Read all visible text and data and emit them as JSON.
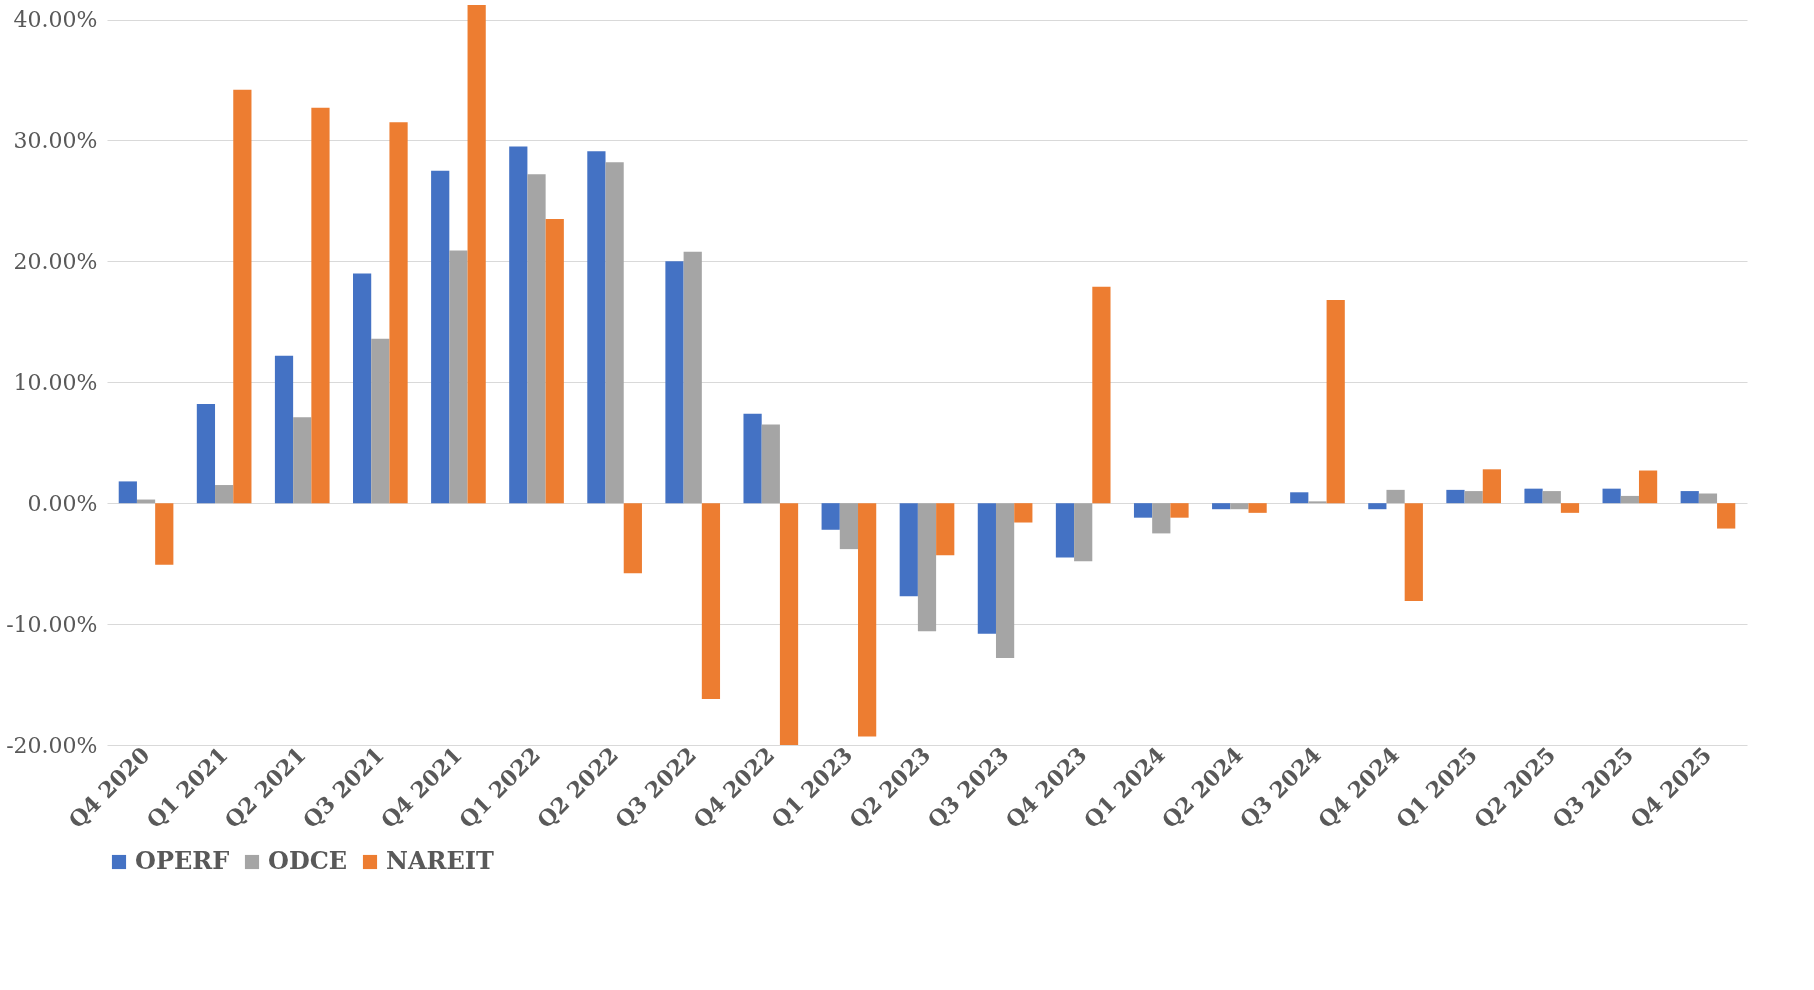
{
  "chart_data": {
    "type": "bar",
    "categories": [
      "Q4 2020",
      "Q1 2021",
      "Q2 2021",
      "Q3 2021",
      "Q4 2021",
      "Q1 2022",
      "Q2 2022",
      "Q3 2022",
      "Q4 2022",
      "Q1 2023",
      "Q2 2023",
      "Q3 2023",
      "Q4 2023",
      "Q1 2024",
      "Q2 2024",
      "Q3 2024",
      "Q4 2024",
      "Q1 2025",
      "Q2 2025",
      "Q3 2025",
      "Q4 2025"
    ],
    "series": [
      {
        "name": "OPERF",
        "color": "#4472c4",
        "values": [
          1.8,
          8.2,
          12.2,
          19.0,
          27.5,
          29.5,
          29.1,
          20.0,
          7.4,
          -2.2,
          -7.7,
          -10.8,
          -4.5,
          -1.2,
          -0.5,
          0.9,
          -0.5,
          1.1,
          1.2,
          1.2,
          1.0
        ]
      },
      {
        "name": "ODCE",
        "color": "#a5a5a5",
        "values": [
          0.3,
          1.5,
          7.1,
          13.6,
          20.9,
          27.2,
          28.2,
          20.8,
          6.5,
          -3.8,
          -10.6,
          -12.8,
          -4.8,
          -2.5,
          -0.5,
          0.15,
          1.1,
          1.0,
          1.0,
          0.6,
          0.8
        ]
      },
      {
        "name": "NAREIT",
        "color": "#ed7d31",
        "values": [
          -5.1,
          34.2,
          32.7,
          31.5,
          41.2,
          23.5,
          -5.8,
          -16.2,
          -20.0,
          -19.3,
          -4.3,
          -1.6,
          17.9,
          -1.2,
          -0.8,
          16.8,
          -8.1,
          2.8,
          -0.8,
          2.7,
          -2.1
        ]
      }
    ],
    "ylim": [
      -20,
      41.2
    ],
    "yticks": [
      {
        "value": -20,
        "label": "-20.00%"
      },
      {
        "value": -10,
        "label": "-10.00%"
      },
      {
        "value": 0,
        "label": "0.00%"
      },
      {
        "value": 10,
        "label": "10.00%"
      },
      {
        "value": 20,
        "label": "20.00%"
      },
      {
        "value": 30,
        "label": "30.00%"
      },
      {
        "value": 40,
        "label": "40.00%"
      }
    ],
    "grid": "y",
    "legend": "bottom"
  }
}
